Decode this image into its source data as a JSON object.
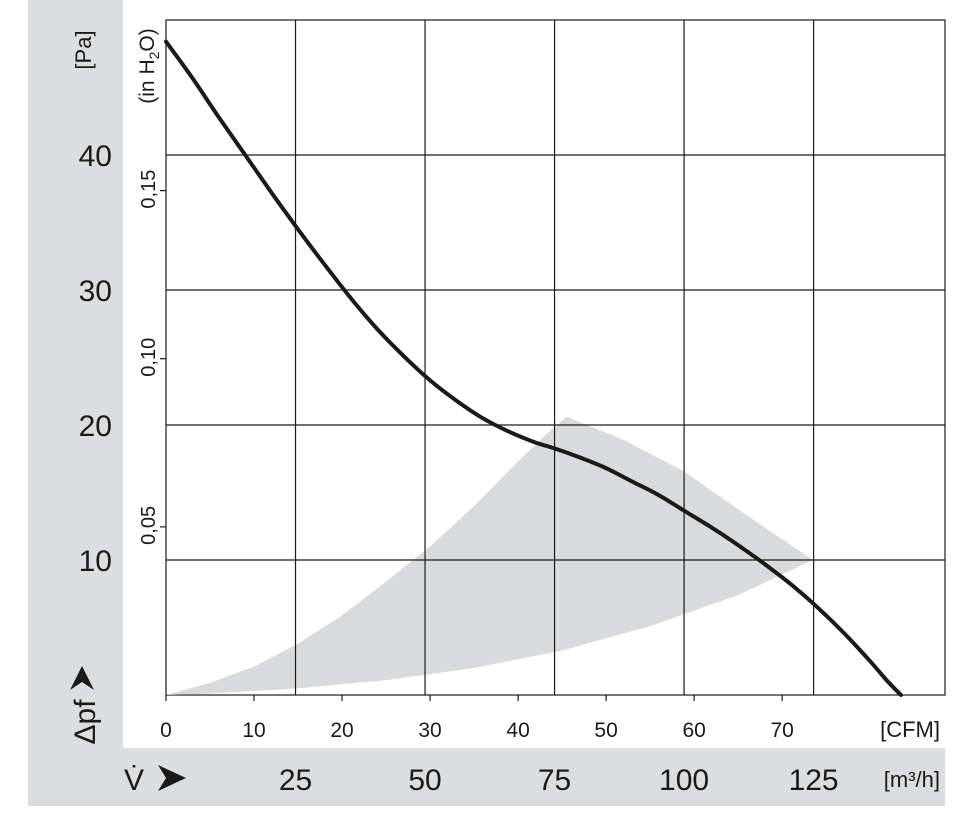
{
  "chart_data": {
    "type": "line",
    "title": "",
    "x_axis": {
      "unit": "[CFM]",
      "ticks": [
        0,
        10,
        20,
        30,
        40,
        50,
        60,
        70
      ],
      "range": [
        0,
        88.5
      ]
    },
    "x_axis_secondary": {
      "symbol": "V̇",
      "unit": "[m³/h]",
      "ticks": [
        25,
        50,
        75,
        100,
        125
      ]
    },
    "y_axis": {
      "symbol": "Δpf",
      "unit": "[Pa]",
      "ticks": [
        10,
        20,
        30,
        40
      ],
      "range": [
        0,
        50
      ]
    },
    "y_axis_secondary": {
      "unit_prefix": "(in H",
      "unit_sub": "2",
      "unit_suffix": "O)",
      "ticks": [
        "0,05",
        "0,10",
        "0,15"
      ],
      "tick_values_inH2O": [
        0.05,
        0.1,
        0.15
      ]
    },
    "grid": true,
    "series": [
      {
        "x": [
          0,
          3,
          6,
          9,
          12,
          15,
          18,
          21,
          24,
          27,
          30,
          33,
          36,
          39,
          42,
          44,
          47,
          50,
          53,
          56,
          59,
          62,
          65,
          68,
          71,
          74,
          77,
          80,
          82,
          83.5
        ],
        "y": [
          48.4,
          45.7,
          42.8,
          40.0,
          37.2,
          34.5,
          31.9,
          29.4,
          27.1,
          25.1,
          23.3,
          21.8,
          20.5,
          19.5,
          18.7,
          18.3,
          17.6,
          16.8,
          15.8,
          14.8,
          13.6,
          12.4,
          11.1,
          9.7,
          8.2,
          6.5,
          4.6,
          2.5,
          1.0,
          0
        ]
      }
    ],
    "operating_region": {
      "upper_edge": {
        "x": [
          0,
          5,
          10,
          15,
          20,
          25,
          30,
          35,
          40,
          43,
          45.5
        ],
        "y": [
          0,
          0.9,
          2.1,
          3.8,
          5.9,
          8.4,
          11.0,
          14.0,
          17.3,
          19.2,
          20.6
        ]
      },
      "outer_edge": {
        "x": [
          45.5,
          52,
          59,
          66,
          73.5
        ],
        "y": [
          20.6,
          18.9,
          16.5,
          13.3,
          10.0
        ]
      },
      "lower_edge": {
        "x": [
          73.5,
          65,
          55,
          45,
          35,
          25,
          15,
          5,
          0
        ],
        "y": [
          10.0,
          7.4,
          5.1,
          3.3,
          2.0,
          1.1,
          0.5,
          0.1,
          0
        ]
      }
    }
  }
}
